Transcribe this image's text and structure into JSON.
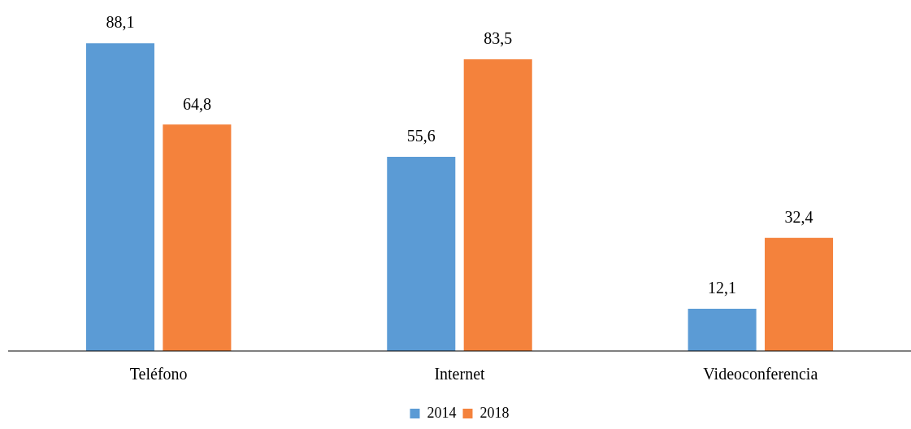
{
  "chart_data": {
    "type": "bar",
    "categories": [
      "Teléfono",
      "Internet",
      "Videoconferencia"
    ],
    "series": [
      {
        "name": "2014",
        "color": "#5b9bd5",
        "values": [
          88.1,
          55.6,
          12.1
        ],
        "value_labels": [
          "88,1",
          "55,6",
          "12,1"
        ]
      },
      {
        "name": "2018",
        "color": "#f4823c",
        "values": [
          64.8,
          83.5,
          32.4
        ],
        "value_labels": [
          "64,8",
          "83,5",
          "32,4"
        ]
      }
    ],
    "grid": false,
    "legend": "bottom"
  }
}
